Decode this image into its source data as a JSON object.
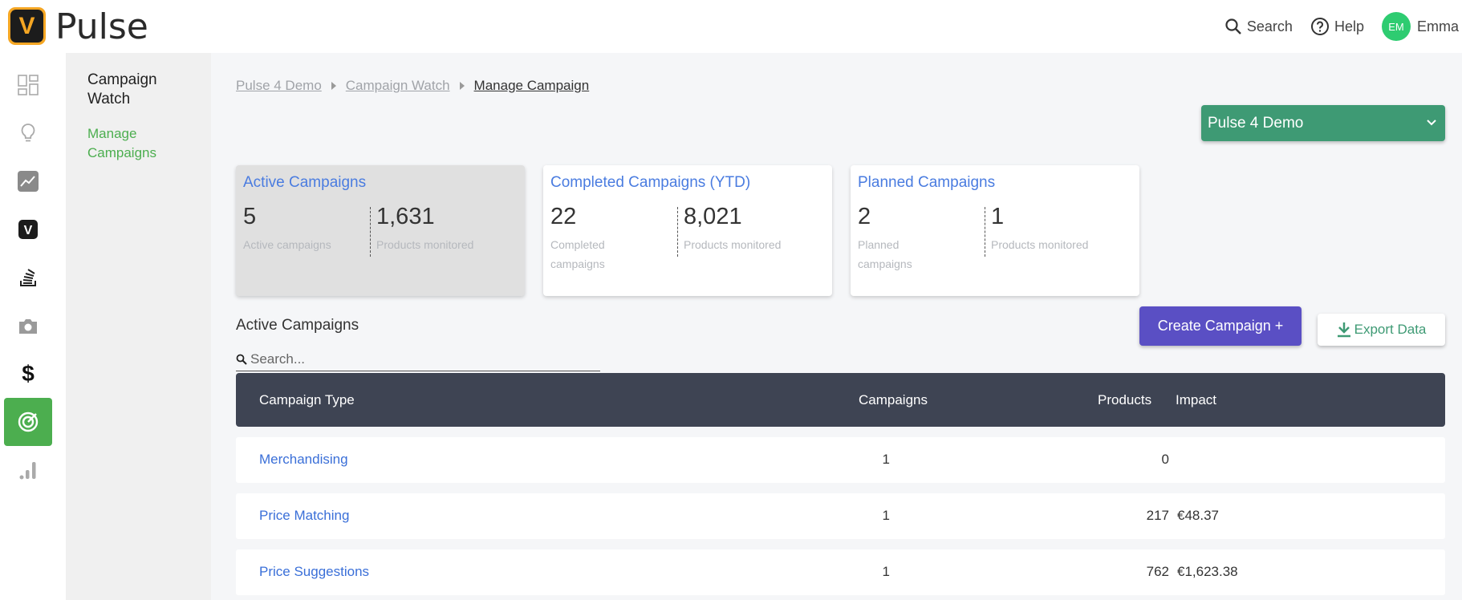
{
  "header": {
    "logo_letter": "V",
    "app_title": "Pulse",
    "search_label": "Search",
    "help_label": "Help",
    "avatar_initials": "EM",
    "user_name": "Emma"
  },
  "rail": {
    "items": [
      "dashboard-icon",
      "lightbulb-icon",
      "trend-chart-icon",
      "v-logo-icon",
      "stack-icon",
      "camera-icon",
      "dollar-icon",
      "target-icon",
      "bar-chart-icon"
    ],
    "active": "target-icon",
    "v_logo_letter": "V",
    "dollar_glyph": "$"
  },
  "subnav": {
    "title": "Campaign Watch",
    "link": "Manage Campaigns"
  },
  "breadcrumb": {
    "items": [
      "Pulse 4 Demo",
      "Campaign Watch",
      "Manage Campaign"
    ]
  },
  "account_select": {
    "value": "Pulse 4 Demo"
  },
  "cards": [
    {
      "title": "Active Campaigns",
      "stat1_value": "5",
      "stat1_label": "Active campaigns",
      "stat2_value": "1,631",
      "stat2_label": "Products monitored"
    },
    {
      "title": "Completed Campaigns (YTD)",
      "stat1_value": "22",
      "stat1_label": "Completed campaigns",
      "stat2_value": "8,021",
      "stat2_label": "Products monitored"
    },
    {
      "title": "Planned Campaigns",
      "stat1_value": "2",
      "stat1_label": "Planned campaigns",
      "stat2_value": "1",
      "stat2_label": "Products monitored"
    }
  ],
  "section": {
    "title": "Active Campaigns",
    "search_placeholder": "Search...",
    "create_button": "Create Campaign +",
    "export_button": "Export Data"
  },
  "table": {
    "columns": [
      "Campaign Type",
      "Campaigns",
      "Products",
      "Impact"
    ],
    "rows": [
      {
        "type": "Merchandising",
        "campaigns": "1",
        "products": "0",
        "impact": ""
      },
      {
        "type": "Price Matching",
        "campaigns": "1",
        "products": "217",
        "impact": "€48.37"
      },
      {
        "type": "Price Suggestions",
        "campaigns": "1",
        "products": "762",
        "impact": "€1,623.38"
      }
    ]
  },
  "colors": {
    "accent_green": "#4cae4f",
    "select_green": "#3e9a74",
    "create_purple": "#5a4fc4",
    "link_blue": "#3a6fd8",
    "table_header": "#3e4453"
  }
}
